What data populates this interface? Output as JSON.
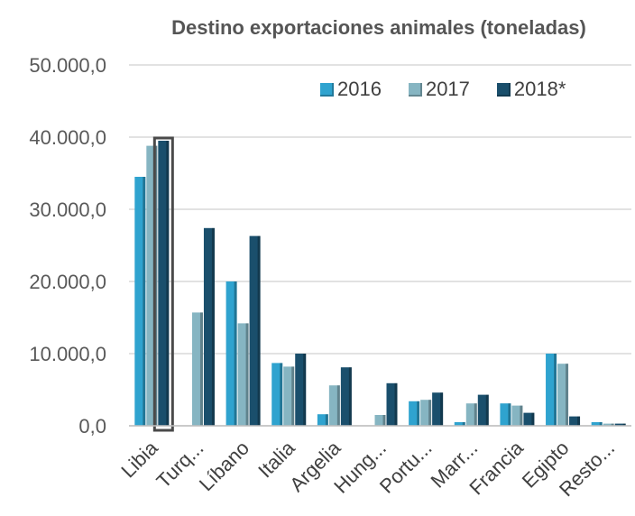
{
  "chart_data": {
    "type": "bar",
    "title": "Destino exportaciones animales (toneladas)",
    "xlabel": "",
    "ylabel": "",
    "categories": [
      "Libia",
      "Turq...",
      "Líbano",
      "Italia",
      "Argelia",
      "Hung...",
      "Portu...",
      "Marr...",
      "Francia",
      "Egipto",
      "Resto..."
    ],
    "series": [
      {
        "name": "2016",
        "color": "#2fa3cf",
        "values": [
          34500,
          0,
          20000,
          8700,
          1600,
          0,
          3400,
          500,
          3100,
          10000,
          500
        ]
      },
      {
        "name": "2017",
        "color": "#86b5c2",
        "values": [
          38800,
          15700,
          14200,
          8200,
          5600,
          1500,
          3600,
          3100,
          2800,
          8600,
          300
        ]
      },
      {
        "name": "2018*",
        "color": "#1a4f6c",
        "values": [
          39500,
          27400,
          26300,
          10000,
          8100,
          5900,
          4600,
          4300,
          1800,
          1300,
          300
        ]
      }
    ],
    "ylim": [
      0,
      50000
    ],
    "yticks": [
      0,
      10000,
      20000,
      30000,
      40000,
      50000
    ],
    "ytick_labels": [
      "0,0",
      "10.000,0",
      "20.000,0",
      "30.000,0",
      "40.000,0",
      "50.000,0"
    ],
    "grid": true,
    "legend_position": "top-right",
    "highlight": {
      "series": 2,
      "category": 0
    }
  }
}
